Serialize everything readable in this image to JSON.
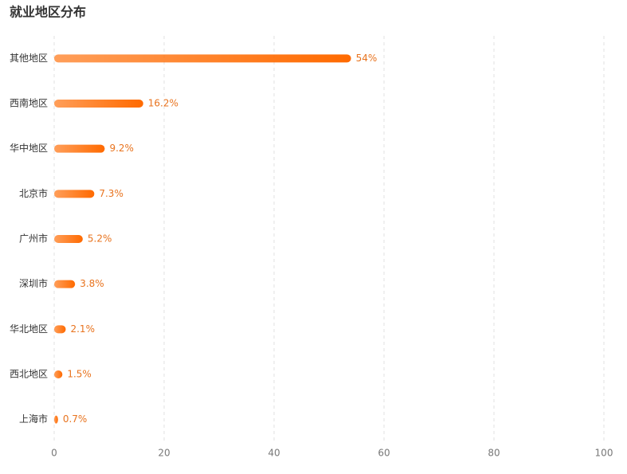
{
  "chart_data": {
    "type": "hbar",
    "title": "就业地区分布",
    "categories": [
      "其他地区",
      "西南地区",
      "华中地区",
      "北京市",
      "广州市",
      "深圳市",
      "华北地区",
      "西北地区",
      "上海市"
    ],
    "values": [
      54,
      16.2,
      9.2,
      7.3,
      5.2,
      3.8,
      2.1,
      1.5,
      0.7
    ],
    "value_labels": [
      "54%",
      "16.2%",
      "9.2%",
      "7.3%",
      "5.2%",
      "3.8%",
      "2.1%",
      "1.5%",
      "0.7%"
    ],
    "color": "#ff6a00",
    "xlim": [
      0,
      100
    ],
    "xticks": [
      0,
      20,
      40,
      60,
      80,
      100
    ],
    "grid": true
  }
}
